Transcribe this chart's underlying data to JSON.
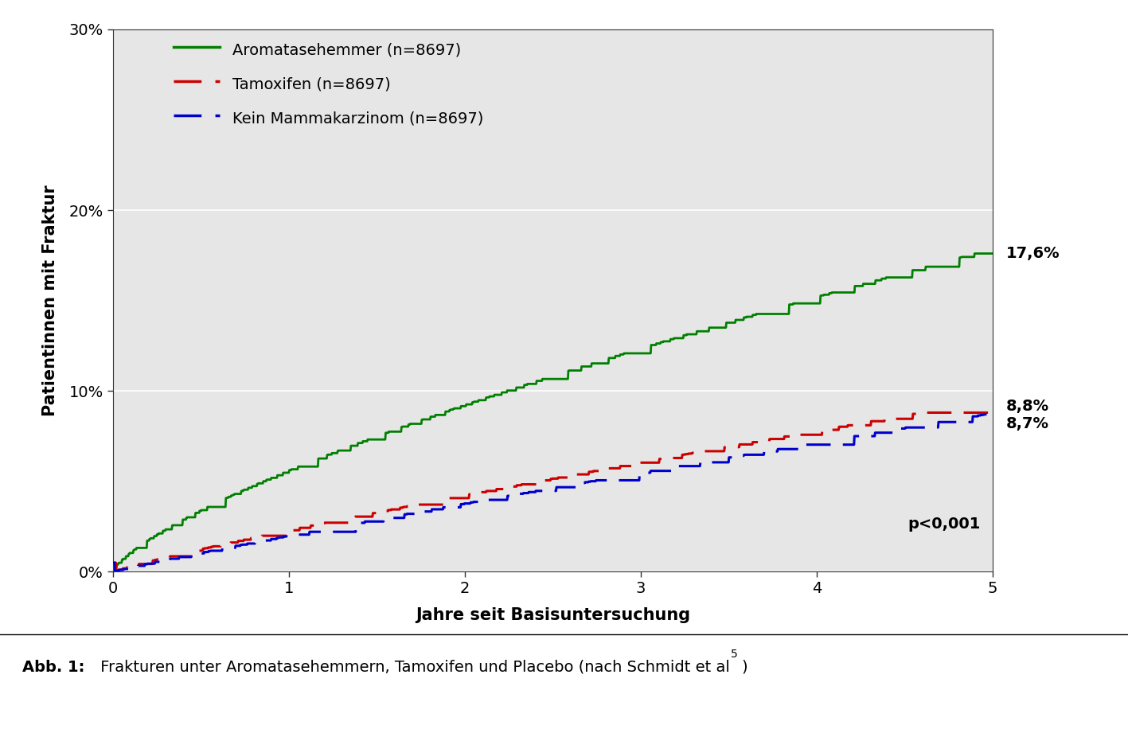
{
  "title": "",
  "xlabel": "Jahre seit Basisuntersuchung",
  "ylabel": "Patientinnen mit Fraktur",
  "xlim": [
    0,
    5
  ],
  "ylim": [
    0,
    0.3
  ],
  "yticks": [
    0.0,
    0.1,
    0.2,
    0.3
  ],
  "ytick_labels": [
    "0%",
    "10%",
    "20%",
    "30%"
  ],
  "xticks": [
    0,
    1,
    2,
    3,
    4,
    5
  ],
  "bg_color": "#e6e6e6",
  "outer_bg": "#ffffff",
  "line1_label": "Aromatasehemmer (n=8697)",
  "line2_label": "Tamoxifen (n=8697)",
  "line3_label": "Kein Mammakarzinom (n=8697)",
  "line1_color": "#008000",
  "line2_color": "#cc0000",
  "line3_color": "#0000cc",
  "line1_end_pct": "17,6%",
  "line2_end_pct": "8,8%",
  "line3_end_pct": "8,7%",
  "pvalue_text": "p<0,001",
  "caption_bold": "Abb. 1:",
  "caption_rest": " Frakturen unter Aromatasehemmern, Tamoxifen und Placebo (nach Schmidt et al",
  "caption_superscript": "5",
  "caption_end": ")"
}
